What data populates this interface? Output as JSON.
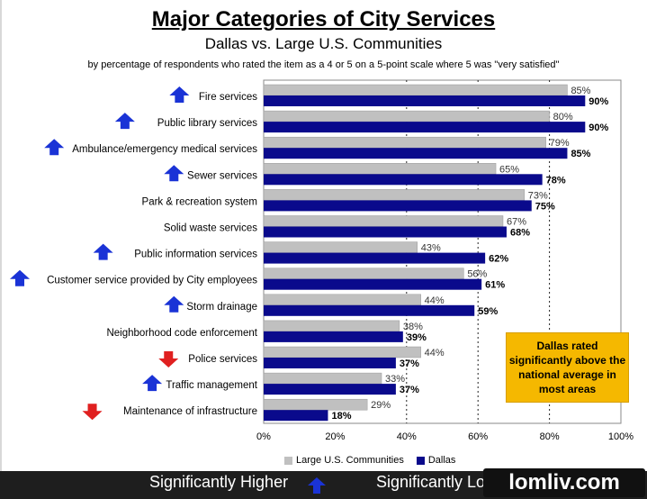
{
  "title": "Major Categories of City Services",
  "subtitle": "Dallas vs. Large U.S. Communities",
  "note": "by percentage of respondents who rated the item as a 4 or 5 on a 5-point scale where 5 was \"very satisfied\"",
  "callout": "Dallas rated significantly above the national average in most areas",
  "bottom": {
    "higher_label": "Significantly Higher",
    "lower_label": "Significantly Lo",
    "watermark": "lomliv.com"
  },
  "colors": {
    "large_us": "#c0c0c0",
    "dallas": "#0a0a8c",
    "up_arrow": "#1a33d6",
    "down_arrow": "#e02020"
  },
  "chart_data": {
    "type": "bar",
    "orientation": "horizontal",
    "categories": [
      "Fire services",
      "Public library services",
      "Ambulance/emergency medical services",
      "Sewer services",
      "Park & recreation system",
      "Solid waste services",
      "Public information services",
      "Customer service provided by City employees",
      "Storm drainage",
      "Neighborhood code enforcement",
      "Police services",
      "Traffic management",
      "Maintenance of infrastructure"
    ],
    "significance": [
      "up",
      "up",
      "up",
      "up",
      "none",
      "none",
      "up",
      "up",
      "up",
      "none",
      "down",
      "up",
      "down"
    ],
    "series": [
      {
        "name": "Large U.S. Communities",
        "values": [
          85,
          80,
          79,
          65,
          73,
          67,
          43,
          56,
          44,
          38,
          44,
          33,
          29
        ]
      },
      {
        "name": "Dallas",
        "values": [
          90,
          90,
          85,
          78,
          75,
          68,
          62,
          61,
          59,
          39,
          37,
          37,
          18
        ]
      }
    ],
    "xlim": [
      0,
      100
    ],
    "xticks": [
      "0%",
      "20%",
      "40%",
      "60%",
      "80%",
      "100%"
    ],
    "gridlines": "dashed at 40%, 60%, 80%",
    "legend_position": "bottom",
    "value_format": "percent"
  }
}
